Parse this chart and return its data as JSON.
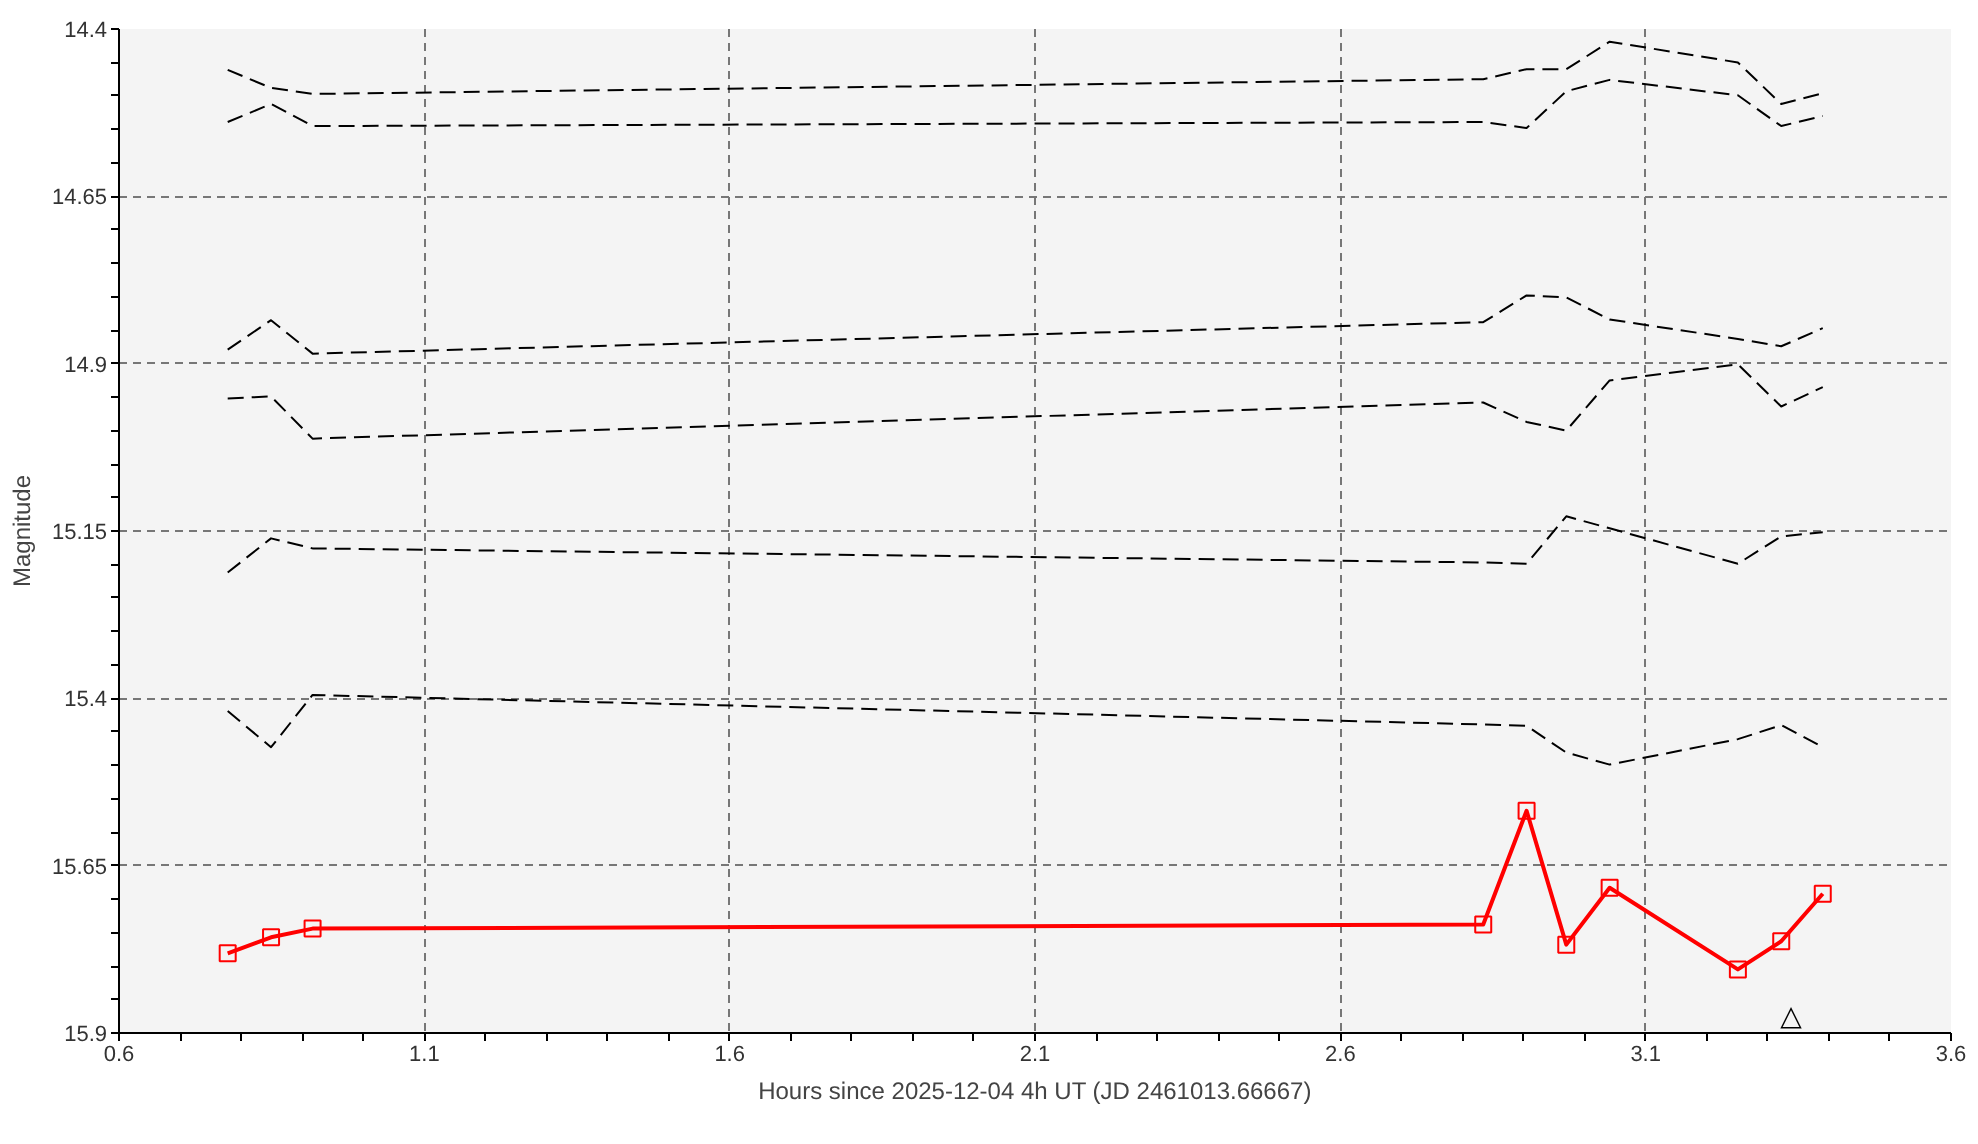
{
  "chart_data": {
    "type": "line",
    "xlabel": "Hours since 2025-12-04 4h UT (JD 2461013.66667)",
    "ylabel": "Magnitude",
    "x": [
      0.778,
      0.849,
      0.917,
      2.834,
      2.905,
      2.97,
      3.041,
      3.251,
      3.322,
      3.39
    ],
    "series": [
      {
        "color": "#000000",
        "line_style": "dashed",
        "marker": "none",
        "values": [
          14.461,
          14.488,
          14.497,
          14.475,
          14.46,
          14.46,
          14.419,
          14.45,
          14.512,
          14.496
        ]
      },
      {
        "color": "#000000",
        "line_style": "dashed",
        "marker": "none",
        "values": [
          14.539,
          14.512,
          14.545,
          14.539,
          14.548,
          14.493,
          14.476,
          14.499,
          14.545,
          14.53
        ]
      },
      {
        "color": "#000000",
        "line_style": "dashed",
        "marker": "none",
        "values": [
          14.879,
          14.835,
          14.885,
          14.838,
          14.798,
          14.801,
          14.834,
          14.863,
          14.874,
          14.847
        ]
      },
      {
        "color": "#000000",
        "line_style": "dashed",
        "marker": "none",
        "values": [
          14.952,
          14.949,
          15.012,
          14.958,
          14.987,
          15.0,
          14.925,
          14.901,
          14.964,
          14.935
        ]
      },
      {
        "color": "#000000",
        "line_style": "dashed",
        "marker": "none",
        "values": [
          15.212,
          15.161,
          15.176,
          15.197,
          15.199,
          15.128,
          15.146,
          15.199,
          15.158,
          15.152
        ]
      },
      {
        "color": "#000000",
        "line_style": "dashed",
        "marker": "none",
        "values": [
          15.419,
          15.473,
          15.395,
          15.439,
          15.441,
          15.481,
          15.499,
          15.461,
          15.44,
          15.473
        ]
      },
      {
        "color": "#ff0000",
        "line_style": "solid",
        "marker": "square",
        "values": [
          15.781,
          15.757,
          15.744,
          15.738,
          15.568,
          15.768,
          15.683,
          15.805,
          15.763,
          15.692
        ]
      }
    ],
    "xlim": [
      0.6,
      3.6
    ],
    "xticks": [
      0.6,
      {
        "value": 0.7,
        "label": null
      },
      {
        "value": 0.8,
        "label": null
      },
      {
        "value": 0.9,
        "label": null
      },
      {
        "value": 1.0,
        "label": null
      },
      1.1,
      {
        "value": 1.2,
        "label": null
      },
      {
        "value": 1.3,
        "label": null
      },
      {
        "value": 1.4,
        "label": null
      },
      {
        "value": 1.5,
        "label": null
      },
      1.6,
      {
        "value": 1.7,
        "label": null
      },
      {
        "value": 1.8,
        "label": null
      },
      {
        "value": 1.9,
        "label": null
      },
      {
        "value": 2.0,
        "label": null
      },
      2.1,
      {
        "value": 2.2,
        "label": null
      },
      {
        "value": 2.3,
        "label": null
      },
      {
        "value": 2.4,
        "label": null
      },
      {
        "value": 2.5,
        "label": null
      },
      2.6,
      {
        "value": 2.7,
        "label": null
      },
      {
        "value": 2.8,
        "label": null
      },
      {
        "value": 2.9,
        "label": null
      },
      {
        "value": 3.0,
        "label": null
      },
      3.1,
      {
        "value": 3.2,
        "label": null
      },
      {
        "value": 3.3,
        "label": null
      },
      {
        "value": 3.4,
        "label": null
      },
      {
        "value": 3.5,
        "label": null
      },
      3.6
    ],
    "ylim": [
      15.9,
      14.4
    ],
    "yticks": [
      14.4,
      {
        "value": 14.45,
        "label": null
      },
      {
        "value": 14.5,
        "label": null
      },
      {
        "value": 14.55,
        "label": null
      },
      {
        "value": 14.6,
        "label": null
      },
      14.65,
      {
        "value": 14.7,
        "label": null
      },
      {
        "value": 14.75,
        "label": null
      },
      {
        "value": 14.8,
        "label": null
      },
      {
        "value": 14.85,
        "label": null
      },
      14.9,
      {
        "value": 14.95,
        "label": null
      },
      {
        "value": 15.0,
        "label": null
      },
      {
        "value": 15.05,
        "label": null
      },
      {
        "value": 15.1,
        "label": null
      },
      15.15,
      {
        "value": 15.2,
        "label": null
      },
      {
        "value": 15.25,
        "label": null
      },
      {
        "value": 15.3,
        "label": null
      },
      {
        "value": 15.35,
        "label": null
      },
      15.4,
      {
        "value": 15.45,
        "label": null
      },
      {
        "value": 15.5,
        "label": null
      },
      {
        "value": 15.55,
        "label": null
      },
      {
        "value": 15.6,
        "label": null
      },
      15.65,
      {
        "value": 15.7,
        "label": null
      },
      {
        "value": 15.75,
        "label": null
      },
      {
        "value": 15.8,
        "label": null
      },
      {
        "value": 15.85,
        "label": null
      },
      15.9
    ],
    "grid": true,
    "annotations": [
      "△"
    ]
  }
}
